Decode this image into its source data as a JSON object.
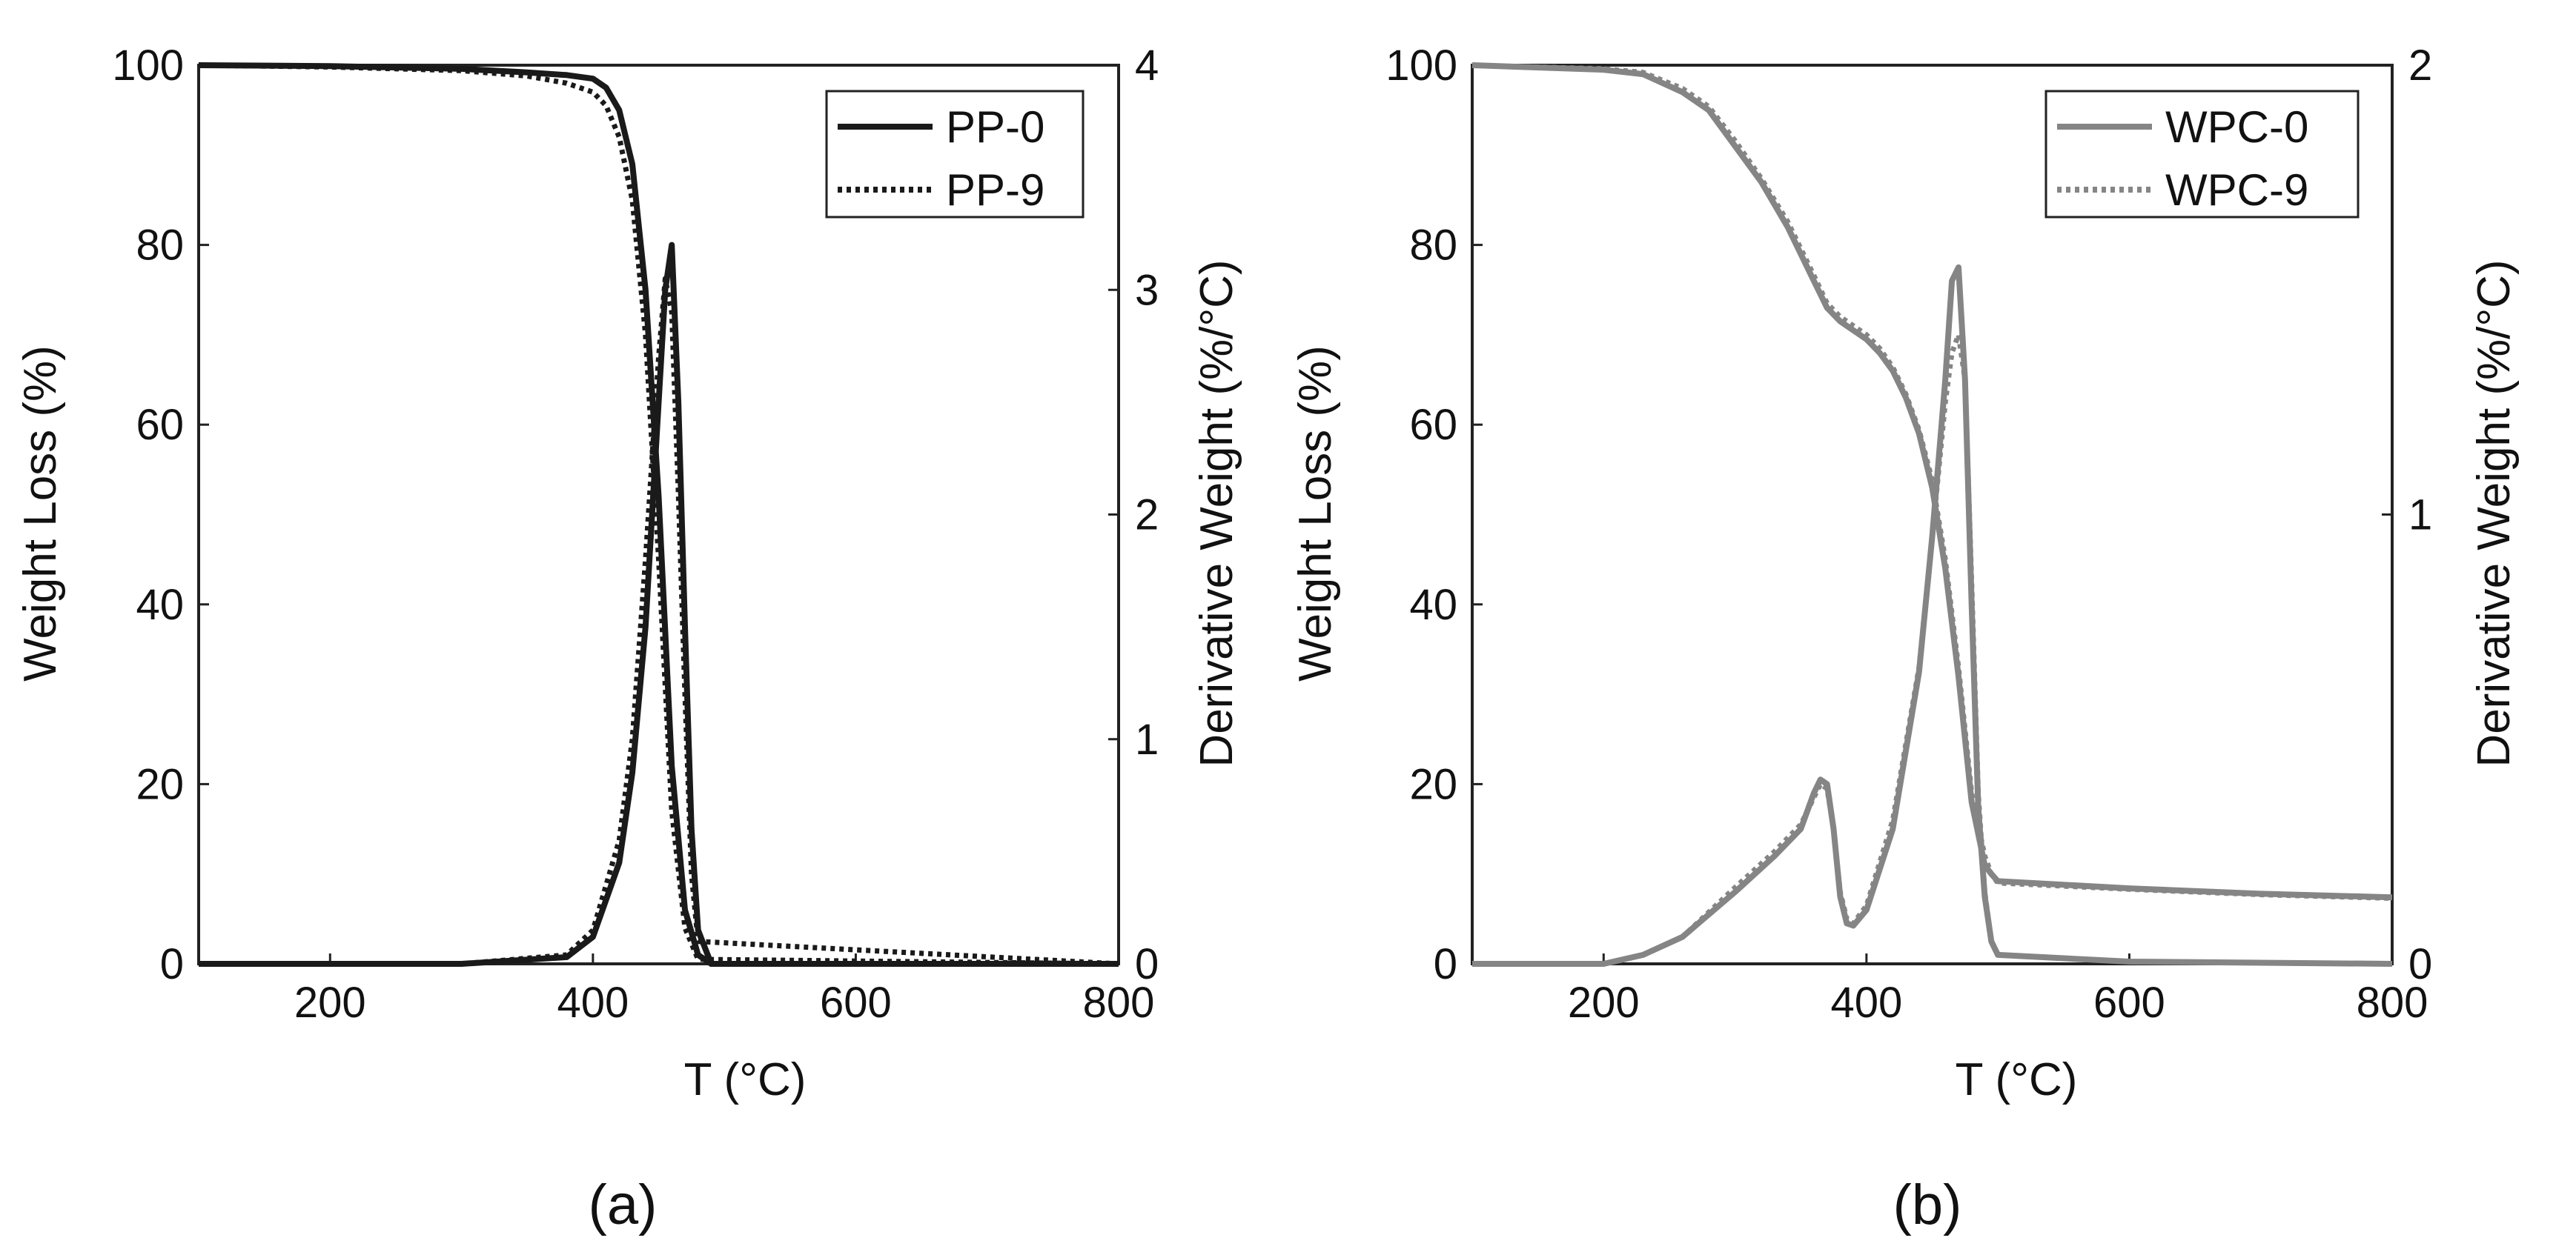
{
  "chart_data": [
    {
      "type": "line",
      "panel_label": "(a)",
      "color": "#1a1a1a",
      "xlabel": "T (°C)",
      "ylabel_left": "Weight Loss (%)",
      "ylabel_right": "Derivative Weight (%/°C)",
      "xlim": [
        100,
        800
      ],
      "ylim_left": [
        0,
        100
      ],
      "ylim_right": [
        0,
        4
      ],
      "xticks": [
        "200",
        "400",
        "600",
        "800"
      ],
      "xtick_values": [
        200,
        400,
        600,
        800
      ],
      "yticks_left": [
        "0",
        "20",
        "40",
        "60",
        "80",
        "100"
      ],
      "ytick_values_left": [
        0,
        20,
        40,
        60,
        80,
        100
      ],
      "yticks_right": [
        "0",
        "1",
        "2",
        "3",
        "4"
      ],
      "ytick_values_right": [
        0,
        1,
        2,
        3,
        4
      ],
      "legend": [
        "PP-0",
        "PP-9"
      ],
      "legend_position": "top-right",
      "series": [
        {
          "name": "PP-0",
          "style": "solid",
          "axis": "left",
          "x": [
            100,
            200,
            300,
            350,
            380,
            400,
            410,
            420,
            430,
            440,
            450,
            460,
            470,
            480,
            490,
            800
          ],
          "y": [
            100,
            99.9,
            99.6,
            99.2,
            98.9,
            98.5,
            97.5,
            95,
            89,
            75,
            52,
            22,
            6,
            1,
            0,
            0
          ]
        },
        {
          "name": "PP-0",
          "style": "solid",
          "axis": "right",
          "x": [
            100,
            300,
            380,
            400,
            420,
            430,
            440,
            450,
            455,
            460,
            465,
            470,
            475,
            480,
            490,
            800
          ],
          "y": [
            0,
            0,
            0.03,
            0.12,
            0.45,
            0.85,
            1.5,
            2.5,
            3.0,
            3.2,
            2.5,
            1.5,
            0.6,
            0.15,
            0,
            0
          ]
        },
        {
          "name": "PP-9",
          "style": "dotted",
          "axis": "left",
          "x": [
            100,
            200,
            300,
            350,
            380,
            400,
            410,
            420,
            430,
            440,
            450,
            460,
            470,
            480,
            800
          ],
          "y": [
            100,
            99.8,
            99.4,
            98.8,
            98.0,
            97.0,
            95.5,
            92,
            85,
            70,
            45,
            17,
            4,
            0.5,
            0
          ]
        },
        {
          "name": "PP-9",
          "style": "dotted",
          "axis": "right",
          "x": [
            100,
            300,
            380,
            400,
            420,
            430,
            440,
            450,
            455,
            460,
            465,
            470,
            475,
            480,
            800
          ],
          "y": [
            0,
            0,
            0.04,
            0.15,
            0.55,
            1.0,
            1.8,
            2.7,
            3.05,
            2.9,
            2.1,
            1.2,
            0.4,
            0.1,
            0
          ]
        }
      ]
    },
    {
      "type": "line",
      "panel_label": "(b)",
      "color": "#858585",
      "xlabel": "T (°C)",
      "ylabel_left": "Weight Loss (%)",
      "ylabel_right": "Derivative Weight (%/°C)",
      "xlim": [
        100,
        800
      ],
      "ylim_left": [
        0,
        100
      ],
      "ylim_right": [
        0,
        2
      ],
      "xticks": [
        "200",
        "400",
        "600",
        "800"
      ],
      "xtick_values": [
        200,
        400,
        600,
        800
      ],
      "yticks_left": [
        "0",
        "20",
        "40",
        "60",
        "80",
        "100"
      ],
      "ytick_values_left": [
        0,
        20,
        40,
        60,
        80,
        100
      ],
      "yticks_right": [
        "0",
        "1",
        "2"
      ],
      "ytick_values_right": [
        0,
        1,
        2
      ],
      "legend": [
        "WPC-0",
        "WPC-9"
      ],
      "legend_position": "top-right",
      "series": [
        {
          "name": "WPC-0",
          "style": "solid",
          "axis": "left",
          "x": [
            100,
            200,
            230,
            260,
            280,
            300,
            320,
            340,
            360,
            370,
            380,
            390,
            400,
            410,
            420,
            430,
            440,
            450,
            460,
            470,
            480,
            490,
            495,
            500,
            600,
            700,
            800
          ],
          "y": [
            100,
            99.5,
            99,
            97,
            95,
            91,
            87,
            82,
            76,
            73,
            71.5,
            70.5,
            69.5,
            68,
            66,
            63,
            59,
            53,
            44,
            32,
            18,
            11,
            10,
            9.2,
            8.4,
            7.8,
            7.4
          ]
        },
        {
          "name": "WPC-0",
          "style": "solid",
          "axis": "right",
          "x": [
            100,
            200,
            230,
            260,
            300,
            330,
            350,
            360,
            365,
            370,
            375,
            380,
            385,
            390,
            400,
            420,
            440,
            450,
            460,
            465,
            470,
            475,
            480,
            485,
            490,
            495,
            500,
            600,
            800
          ],
          "y": [
            0,
            0,
            0.02,
            0.06,
            0.16,
            0.24,
            0.3,
            0.38,
            0.41,
            0.4,
            0.3,
            0.15,
            0.09,
            0.085,
            0.12,
            0.3,
            0.65,
            0.95,
            1.3,
            1.52,
            1.55,
            1.3,
            0.8,
            0.35,
            0.15,
            0.05,
            0.02,
            0.005,
            0
          ]
        },
        {
          "name": "WPC-9",
          "style": "dotted",
          "axis": "left",
          "x": [
            100,
            200,
            230,
            260,
            280,
            300,
            320,
            340,
            360,
            370,
            380,
            390,
            400,
            410,
            420,
            430,
            440,
            450,
            460,
            470,
            480,
            490,
            495,
            500,
            600,
            700,
            800
          ],
          "y": [
            100,
            99.6,
            99.2,
            97.4,
            95.4,
            91.6,
            87.4,
            82.6,
            76.6,
            73.5,
            72,
            71,
            70,
            68.5,
            66.4,
            63.4,
            59.4,
            53.8,
            45,
            33,
            19,
            12,
            10,
            9,
            8.3,
            7.7,
            7.3
          ]
        },
        {
          "name": "WPC-9",
          "style": "dotted",
          "axis": "right",
          "x": [
            100,
            200,
            230,
            260,
            300,
            330,
            350,
            360,
            365,
            370,
            375,
            380,
            385,
            390,
            400,
            420,
            440,
            450,
            460,
            465,
            470,
            475,
            480,
            485,
            490,
            495,
            500,
            600,
            800
          ],
          "y": [
            0,
            0,
            0.02,
            0.06,
            0.17,
            0.25,
            0.31,
            0.37,
            0.4,
            0.39,
            0.3,
            0.16,
            0.1,
            0.09,
            0.13,
            0.32,
            0.66,
            0.95,
            1.25,
            1.36,
            1.4,
            1.3,
            0.85,
            0.38,
            0.16,
            0.05,
            0.02,
            0.005,
            0
          ]
        }
      ]
    }
  ]
}
